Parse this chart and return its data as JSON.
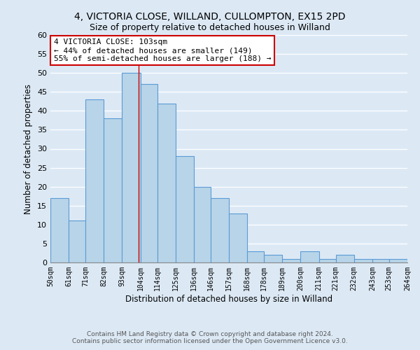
{
  "title1": "4, VICTORIA CLOSE, WILLAND, CULLOMPTON, EX15 2PD",
  "title2": "Size of property relative to detached houses in Willand",
  "xlabel": "Distribution of detached houses by size in Willand",
  "ylabel": "Number of detached properties",
  "bar_edges": [
    50,
    61,
    71,
    82,
    93,
    104,
    114,
    125,
    136,
    146,
    157,
    168,
    178,
    189,
    200,
    211,
    221,
    232,
    243,
    253,
    264
  ],
  "bar_heights": [
    17,
    11,
    43,
    38,
    50,
    47,
    42,
    28,
    20,
    17,
    13,
    3,
    2,
    1,
    3,
    1,
    2,
    1,
    1,
    1
  ],
  "bar_color": "#b8d4e8",
  "bar_edge_color": "#5b9bd5",
  "annotation_title": "4 VICTORIA CLOSE: 103sqm",
  "annotation_line1": "← 44% of detached houses are smaller (149)",
  "annotation_line2": "55% of semi-detached houses are larger (188) →",
  "property_line_x": 103,
  "annotation_box_color": "#ffffff",
  "annotation_box_edge_color": "#cc0000",
  "ylim": [
    0,
    60
  ],
  "xlim": [
    50,
    264
  ],
  "tick_labels": [
    "50sqm",
    "61sqm",
    "71sqm",
    "82sqm",
    "93sqm",
    "104sqm",
    "114sqm",
    "125sqm",
    "136sqm",
    "146sqm",
    "157sqm",
    "168sqm",
    "178sqm",
    "189sqm",
    "200sqm",
    "211sqm",
    "221sqm",
    "232sqm",
    "243sqm",
    "253sqm",
    "264sqm"
  ],
  "yticks": [
    0,
    5,
    10,
    15,
    20,
    25,
    30,
    35,
    40,
    45,
    50,
    55,
    60
  ],
  "footer1": "Contains HM Land Registry data © Crown copyright and database right 2024.",
  "footer2": "Contains public sector information licensed under the Open Government Licence v3.0.",
  "background_color": "#dce9f5"
}
